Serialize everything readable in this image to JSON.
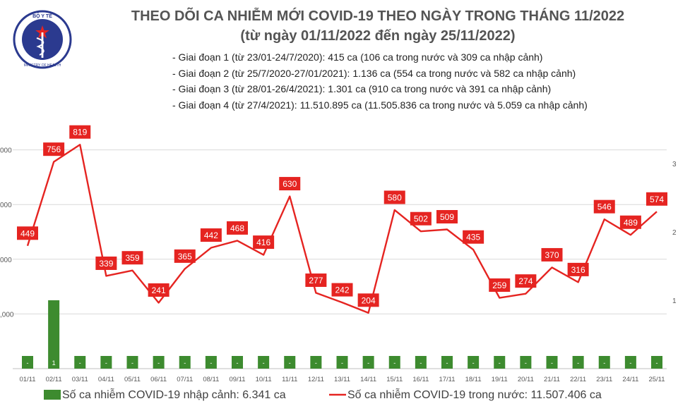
{
  "header": {
    "logo_text": "BỘ Y TẾ",
    "logo_subtext": "MINISTRY OF HEALTH",
    "title_line1": "THEO DÕI CA NHIỄM MỚI COVID-19 THEO NGÀY TRONG THÁNG 11/2022",
    "title_line2": "(từ ngày 01/11/2022 đến ngày 25/11/2022)",
    "notes": [
      "- Giai đoạn 1 (từ 23/01-24/7/2020): 415 ca (106 ca trong nước và 309 ca nhập cảnh)",
      "- Giai đoạn 2 (từ 25/7/2020-27/01/2021): 1.136 ca (554 ca trong nước và 582 ca nhập cảnh)",
      "- Giai đoạn 3 (từ 28/01-26/4/2021): 1.301 ca (910 ca trong nước và 391 ca nhập cảnh)",
      "- Giai đoạn 4 (từ 27/4/2021): 11.510.895 ca (11.505.836 ca trong nước và 5.059 ca nhập cảnh)"
    ]
  },
  "colors": {
    "line": "#e52421",
    "bar": "#3d8b2f",
    "title": "#545454",
    "grid": "#d9d9d9"
  },
  "chart_data": {
    "type": "bar+line",
    "categories": [
      "01/11",
      "02/11",
      "03/11",
      "04/11",
      "05/11",
      "06/11",
      "07/11",
      "08/11",
      "09/11",
      "10/11",
      "11/11",
      "12/11",
      "13/11",
      "14/11",
      "15/11",
      "16/11",
      "17/11",
      "18/11",
      "19/11",
      "20/11",
      "21/11",
      "22/11",
      "23/11",
      "24/11",
      "25/11"
    ],
    "series": [
      {
        "name": "Số ca nhiễm COVID-19 nhập cảnh: 6.341 ca",
        "kind": "bar",
        "axis": "right",
        "values": [
          0,
          1,
          0,
          0,
          0,
          0,
          0,
          0,
          0,
          0,
          0,
          0,
          0,
          0,
          0,
          0,
          0,
          0,
          0,
          0,
          0,
          0,
          0,
          0,
          0
        ],
        "labels": [
          "-",
          "1",
          "-",
          "-",
          "-",
          "-",
          "-",
          "-",
          "-",
          "-",
          "-",
          "-",
          "-",
          "-",
          "-",
          "-",
          "-",
          "-",
          "-",
          "-",
          "-",
          "-",
          "-",
          "-",
          "-"
        ]
      },
      {
        "name": "Số ca nhiễm COVID-19 trong nước: 11.507.406 ca",
        "kind": "line",
        "axis": "left",
        "values": [
          449,
          756,
          819,
          339,
          359,
          241,
          365,
          442,
          468,
          416,
          630,
          277,
          242,
          204,
          580,
          502,
          509,
          435,
          259,
          274,
          370,
          316,
          546,
          489,
          574
        ]
      }
    ],
    "left_axis": {
      "ylim": [
        0,
        1000
      ],
      "tick_labels": [
        "",
        ",000",
        "000",
        "000",
        "000",
        ""
      ]
    },
    "right_axis": {
      "ylim": [
        0,
        4
      ],
      "tick_labels": [
        "",
        "1",
        "2",
        "3",
        ""
      ]
    },
    "grid": true,
    "legend_position": "bottom"
  }
}
